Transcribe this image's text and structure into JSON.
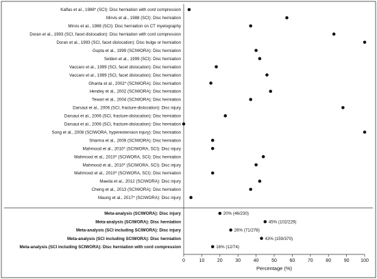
{
  "chart_data": {
    "type": "scatter",
    "title": "",
    "xlabel": "Percentage (%)",
    "ylabel": "",
    "xlim": [
      0,
      100
    ],
    "xticks": [
      0,
      10,
      20,
      30,
      40,
      50,
      60,
      70,
      80,
      90,
      100
    ],
    "grid": false,
    "legend": "none",
    "marker_color": "#111111",
    "studies": [
      {
        "label": "Kalfas et al., 1988* (SCI): Disc herniation with cord compression",
        "value": 3
      },
      {
        "label": "Mirvis et al., 1988 (SCI): Disc herniation",
        "value": 57
      },
      {
        "label": "Mirvis et al., 1988 (SCI): Disc herniation on CT myelography",
        "value": 37
      },
      {
        "label": "Doran et al., 1993 (SCI, facet dislocation): Disc herniation with cord compression",
        "value": 83
      },
      {
        "label": "Doran et al., 1993 (SCI, facet dislocation): Disc bulge or herniation",
        "value": 100
      },
      {
        "label": "Gupta et al., 1999 (SCIWORA): Disc herniation",
        "value": 40
      },
      {
        "label": "Selden et al., 1999 (SCI): Disc herniation",
        "value": 42
      },
      {
        "label": "Vaccaro et al., 1999 (SCI, facet dislocation): Disc herniation",
        "value": 18
      },
      {
        "label": "Vaccaro et al., 1999 (SCI, facet dislocation): Disc herniation",
        "value": 46
      },
      {
        "label": "Ghanta et al., 2002* (SCIWORA): Disc herniation",
        "value": 15
      },
      {
        "label": "Hendey et al., 2002 (SCIWORA): Disc herniation",
        "value": 48
      },
      {
        "label": "Tewari et al., 2004 (SCIWORA): Disc herniation",
        "value": 37
      },
      {
        "label": "Darsaut et al., 2006 (SCI, fracture-dislocation): Disc injury",
        "value": 88
      },
      {
        "label": "Darsaut et al., 2006 (SCI, fracture-dislocation): Disc herniation",
        "value": 23
      },
      {
        "label": "Darsaut et al., 2006 (SCI, fracture-dislocation): Disc herniation",
        "value": 0
      },
      {
        "label": "Song et al., 2008 (SCIWORA, hyperextension injury): Disc herniation",
        "value": 100
      },
      {
        "label": "Sharma et al., 2009 (SCIWORA): Disc herniation",
        "value": 16
      },
      {
        "label": "Mahmood et al., 2010* (SCIWORA, SCI): Disc injury",
        "value": 16
      },
      {
        "label": "Mahmood et al., 2010* (SCIWORA, SCI): Disc herniation",
        "value": 44
      },
      {
        "label": "Mahmood et al., 2010* (SCIWORA, SCI): Disc injury",
        "value": 40
      },
      {
        "label": "Mahmood et al., 2010* (SCIWORA, SCI): Disc herniation",
        "value": 16
      },
      {
        "label": "Maeda et al., 2012 (SCIWORA): Disc injury",
        "value": 42
      },
      {
        "label": "Cheng et al., 2013 (SCIWORA): Disc herniation",
        "value": 37
      },
      {
        "label": "Maung et al., 2017* (SCIWORA): Disc injury",
        "value": 4
      }
    ],
    "meta_analyses": [
      {
        "label": "Meta-analysis (SCIWORA): Disc injury",
        "value": 20,
        "annotation": "20% (46/230)"
      },
      {
        "label": "Meta-analysis (SCIWORA): Disc herniation",
        "value": 45,
        "annotation": "45% (102/229)"
      },
      {
        "label": "Meta-analysis (SCI including SCIWORA): Disc injury",
        "value": 26,
        "annotation": "26% (71/278)"
      },
      {
        "label": "Meta-analysis (SCI including SCIWORA): Disc herniation",
        "value": 43,
        "annotation": "43% (159/370)"
      },
      {
        "label": "Meta-analysis (SCI including SCIWORA): Disc herniation with cord compression",
        "value": 16,
        "annotation": "16% (12/74)"
      }
    ]
  }
}
